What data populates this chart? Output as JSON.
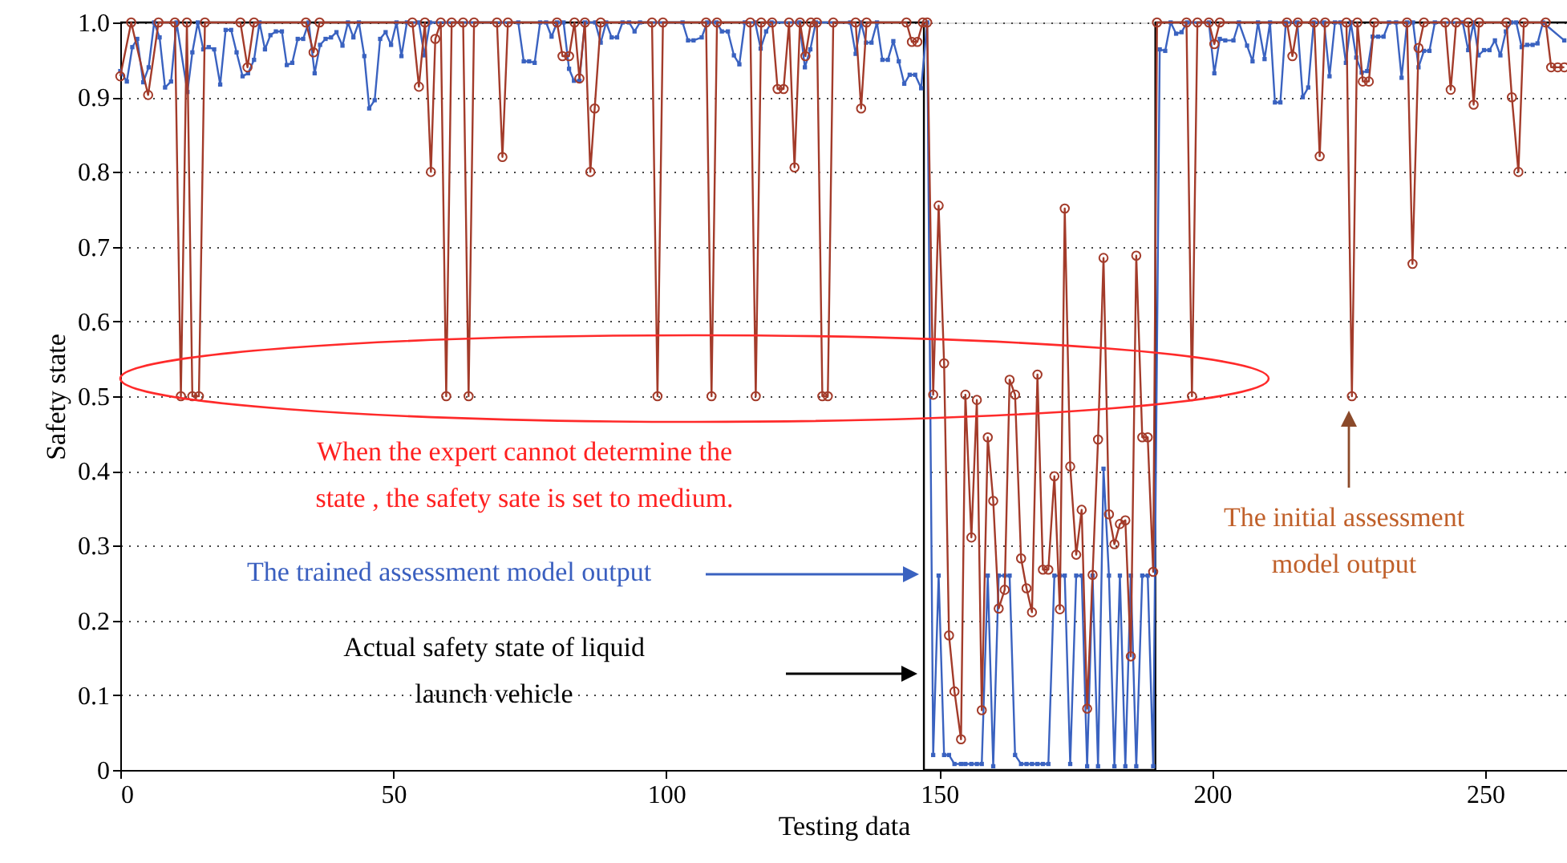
{
  "chart_data": {
    "type": "line",
    "xlabel": "Testing data",
    "ylabel": "Safety state",
    "xlim": [
      0,
      265
    ],
    "xticks": [
      0,
      50,
      100,
      150,
      200,
      250
    ],
    "ylim": [
      0,
      1
    ],
    "yticks": [
      0,
      0.1,
      0.2,
      0.3,
      0.4,
      0.5,
      0.6,
      0.7,
      0.8,
      0.9,
      {
        "value": 1,
        "label": "1.0"
      }
    ],
    "grid": "y",
    "annotations": [
      "When the expert cannot determine the state , the safety sate is set to medium.",
      "The trained assessment model output",
      "Actual safety state of liquid launch vehicle",
      "The initial assessment model output"
    ],
    "series": [
      {
        "color": "#000000",
        "marker": "none",
        "x": [
          0,
          147.2,
          147.2,
          189.6,
          189.6,
          265
        ],
        "values": [
          1,
          1,
          0,
          0,
          1,
          1
        ]
      },
      {
        "color": "#3a62c0",
        "marker": "square",
        "x": [
          0,
          1.2,
          2.2,
          3.1,
          4.2,
          5.2,
          6.2,
          7.2,
          8.2,
          9.3,
          10.3,
          12.3,
          13.2,
          14.2,
          15.2,
          16.2,
          17.2,
          18.3,
          19.3,
          20.3,
          21.3,
          22.4,
          23.4,
          24.5,
          25.5,
          26.5,
          27.5,
          28.5,
          29.6,
          30.5,
          31.5,
          32.5,
          33.5,
          34.5,
          35.6,
          36.6,
          37.6,
          38.6,
          39.6,
          40.7,
          41.7,
          42.7,
          43.7,
          44.7,
          45.6,
          46.6,
          47.6,
          48.6,
          49.6,
          50.6,
          51.5,
          52.5,
          54.7,
          55.7,
          56.7,
          72.9,
          73.9,
          74.9,
          75.9,
          76.9,
          78,
          79,
          80,
          81.2,
          82.2,
          83.1,
          84.1,
          85.1,
          87,
          88,
          89,
          90,
          91,
          92,
          93.2,
          94.2,
          95.2,
          103,
          104,
          105,
          106.5,
          107.5,
          109.2,
          110.2,
          111.3,
          112.4,
          113.4,
          114.4,
          116.3,
          117.3,
          118.3,
          119.3,
          124.4,
          125.4,
          126.4,
          127.4,
          133.7,
          134.7,
          135.7,
          136.6,
          137.6,
          138.6,
          139.6,
          140.6,
          141.6,
          142.6,
          143.6,
          144.6,
          145.6,
          146.7,
          147.8,
          148.9,
          149.9,
          150.9,
          151.8,
          152.8,
          154,
          154.8,
          155.9,
          156.9,
          157.8,
          158.9,
          159.9,
          160.9,
          162,
          162.9,
          163.9,
          165,
          166,
          167,
          168,
          169,
          170,
          171.1,
          172.1,
          173,
          174,
          175.1,
          176.1,
          177.1,
          178.1,
          179.1,
          180.1,
          181.1,
          182.1,
          183.1,
          184.1,
          185.1,
          186.1,
          187.2,
          188.2,
          189.2,
          190.4,
          191.4,
          192.4,
          193.4,
          194.4,
          195.4,
          199.4,
          200.4,
          201.4,
          202.4,
          203.9,
          204.9,
          206.4,
          207.4,
          208.4,
          209.6,
          210.6,
          211.5,
          212.5,
          213.5,
          215.6,
          216.6,
          217.6,
          218.6,
          220.5,
          221.5,
          222.5,
          223.5,
          224.5,
          225.4,
          226.4,
          227.4,
          228.4,
          229.4,
          230.4,
          231.4,
          232.4,
          233.7,
          234.7,
          235.7,
          236.8,
          237.8,
          238.8,
          239.8,
          240.8,
          245.9,
          246.9,
          247.9,
          248.8,
          249.8,
          250.8,
          251.8,
          252.8,
          253.8,
          254.8,
          255.7,
          256.7,
          257.7,
          258.7,
          259.6,
          260.6,
          264.5
        ],
        "values": [
          0.935,
          0.921,
          0.967,
          0.978,
          0.92,
          0.94,
          1,
          0.98,
          0.913,
          0.921,
          1,
          0.907,
          0.96,
          1,
          0.964,
          0.967,
          0.964,
          0.917,
          0.99,
          0.99,
          0.96,
          0.928,
          0.932,
          0.95,
          1,
          0.964,
          0.983,
          0.988,
          0.988,
          0.943,
          0.946,
          0.978,
          0.978,
          1,
          0.932,
          0.97,
          0.978,
          0.98,
          0.987,
          0.969,
          1,
          0.98,
          1,
          0.955,
          0.885,
          0.896,
          0.978,
          0.987,
          0.97,
          1,
          0.955,
          1,
          1,
          0.956,
          1,
          1,
          0.948,
          0.948,
          0.946,
          1,
          1,
          0.981,
          1,
          1,
          0.938,
          0.922,
          0.922,
          1,
          1,
          0.973,
          1,
          0.98,
          0.98,
          1,
          1,
          0.988,
          1,
          1,
          0.976,
          0.976,
          0.98,
          1,
          1,
          0.988,
          0.988,
          0.956,
          0.944,
          1,
          1,
          0.965,
          0.988,
          1,
          1,
          0.94,
          0.964,
          1,
          1,
          0.958,
          1,
          0.973,
          0.973,
          1,
          0.95,
          0.95,
          0.975,
          0.948,
          0.918,
          0.93,
          0.93,
          0.912,
          1,
          0.02,
          0.26,
          0.02,
          0.02,
          0.008,
          0.008,
          0.008,
          0.008,
          0.008,
          0.008,
          0.26,
          0.005,
          0.26,
          0.26,
          0.26,
          0.02,
          0.008,
          0.008,
          0.008,
          0.008,
          0.008,
          0.008,
          0.26,
          0.26,
          0.26,
          0.008,
          0.26,
          0.26,
          0.005,
          0.26,
          0.005,
          0.403,
          0.26,
          0.005,
          0.26,
          0.005,
          0.26,
          0.005,
          0.26,
          0.26,
          0.005,
          0.964,
          0.962,
          1,
          0.985,
          0.987,
          1,
          1,
          0.932,
          0.978,
          0.976,
          0.976,
          1,
          0.969,
          0.948,
          1,
          0.951,
          1,
          0.893,
          0.893,
          1,
          1,
          0.9,
          0.913,
          1,
          1,
          0.928,
          1,
          1,
          0.946,
          1,
          0.953,
          0.933,
          0.935,
          0.981,
          0.981,
          0.981,
          1,
          1,
          0.926,
          1,
          1,
          0.94,
          0.962,
          0.962,
          1,
          1,
          0.963,
          1,
          0.956,
          0.963,
          0.963,
          0.976,
          0.956,
          0.988,
          1,
          1,
          0.967,
          0.97,
          0.97,
          0.972,
          1,
          0.976
        ]
      },
      {
        "color": "#a33b2a",
        "marker": "circle",
        "x": [
          0,
          2,
          5.1,
          7,
          10,
          11.1,
          12.2,
          13.2,
          14.4,
          15.5,
          22,
          23.3,
          24.5,
          34,
          35.4,
          36.5,
          53.5,
          54.7,
          55.8,
          56.9,
          57.7,
          58.7,
          59.7,
          60.7,
          62.8,
          63.8,
          64.8,
          69,
          70,
          71,
          80,
          81,
          82.2,
          83.2,
          84.1,
          85.1,
          86.1,
          86.9,
          88,
          97.4,
          98.4,
          99.4,
          107.3,
          108.3,
          109.3,
          115.4,
          116.4,
          117.4,
          119.4,
          120.4,
          121.5,
          122.5,
          123.5,
          124.5,
          125.5,
          126.5,
          127.6,
          128.6,
          129.6,
          130.6,
          134.7,
          135.7,
          136.7,
          144,
          145,
          146,
          147,
          147.8,
          148.9,
          149.9,
          150.9,
          151.8,
          152.8,
          154,
          154.8,
          155.9,
          156.9,
          157.8,
          158.9,
          159.9,
          160.9,
          162,
          162.9,
          163.9,
          165,
          166,
          167,
          168,
          169,
          170,
          171.1,
          172.1,
          173,
          174,
          175.1,
          176.1,
          177.1,
          178.1,
          179.1,
          180.1,
          181.1,
          182.1,
          183.1,
          184.1,
          185.1,
          186.1,
          187.2,
          188.2,
          189.2,
          189.9,
          195.3,
          196.3,
          197.3,
          199.4,
          200.4,
          201.4,
          213.7,
          214.7,
          215.7,
          218.7,
          219.7,
          220.7,
          224.6,
          225.6,
          226.6,
          227.6,
          228.7,
          229.7,
          235.7,
          236.7,
          237.8,
          238.8,
          242.7,
          243.7,
          244.7,
          246.9,
          247.9,
          248.9,
          253.9,
          254.9,
          256.1,
          257.1,
          261.1,
          262.1,
          263.3,
          264.5
        ],
        "values": [
          0.928,
          1,
          0.903,
          1,
          1,
          0.5,
          1,
          0.5,
          0.5,
          1,
          1,
          0.94,
          1,
          1,
          0.96,
          1,
          1,
          0.914,
          1,
          0.8,
          0.978,
          1,
          0.5,
          1,
          1,
          0.5,
          1,
          1,
          0.82,
          1,
          1,
          0.955,
          0.955,
          1,
          0.925,
          1,
          0.8,
          0.885,
          1,
          1,
          0.5,
          1,
          1,
          0.5,
          1,
          1,
          0.5,
          1,
          1,
          0.911,
          0.911,
          1,
          0.806,
          1,
          0.955,
          1,
          1,
          0.5,
          0.5,
          1,
          1,
          0.885,
          1,
          1,
          0.974,
          0.974,
          1,
          1,
          0.502,
          0.755,
          0.544,
          0.18,
          0.105,
          0.041,
          0.502,
          0.311,
          0.495,
          0.08,
          0.445,
          0.36,
          0.216,
          0.241,
          0.522,
          0.502,
          0.283,
          0.243,
          0.211,
          0.529,
          0.268,
          0.268,
          0.393,
          0.215,
          0.751,
          0.406,
          0.288,
          0.348,
          0.082,
          0.261,
          0.442,
          0.685,
          0.342,
          0.302,
          0.329,
          0.334,
          0.152,
          0.688,
          0.445,
          0.445,
          0.265,
          1,
          1,
          0.5,
          1,
          1,
          0.971,
          1,
          1,
          0.955,
          1,
          1,
          0.821,
          1,
          1,
          0.5,
          1,
          0.921,
          0.921,
          1,
          1,
          0.677,
          0.966,
          1,
          1,
          0.91,
          1,
          1,
          0.89,
          1,
          1,
          0.9,
          0.8,
          1,
          1,
          0.94,
          0.94,
          0.94
        ]
      }
    ]
  }
}
